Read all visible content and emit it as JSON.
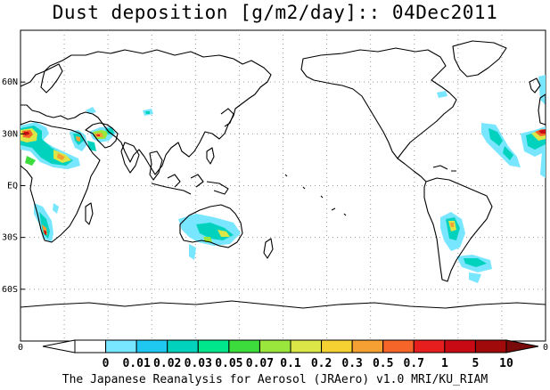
{
  "title": "Dust deposition [g/m2/day]:: 04Dec2011",
  "footer": "The Japanese Reanalysis for Aerosol (JRAero) v1.0 MRI/KU_RIAM",
  "lat_labels": [
    "60N",
    "30N",
    "EQ",
    "30S",
    "60S"
  ],
  "lon_edge_labels": [
    "0",
    "0"
  ],
  "colorbar": {
    "labels": [
      "0",
      "0.01",
      "0.02",
      "0.03",
      "0.05",
      "0.07",
      "0.1",
      "0.2",
      "0.3",
      "0.5",
      "0.7",
      "1",
      "5",
      "10"
    ],
    "colors": [
      "#ffffff",
      "#ffffff",
      "#78e6ff",
      "#1ec8f0",
      "#00d2be",
      "#00e68c",
      "#3cdc3c",
      "#9be63c",
      "#dce646",
      "#f5d232",
      "#f5a032",
      "#f56428",
      "#e61e1e",
      "#c80a14",
      "#a00a0a",
      "#780a0a"
    ]
  },
  "map": {
    "projection": "equirectangular",
    "lon_range": [
      0,
      360
    ],
    "lat_range": [
      -90,
      90
    ],
    "gridline_lats": [
      60,
      30,
      0,
      -30,
      -60
    ],
    "gridline_lons": [
      30,
      60,
      90,
      120,
      150,
      180,
      210,
      240,
      270,
      300,
      330
    ]
  }
}
